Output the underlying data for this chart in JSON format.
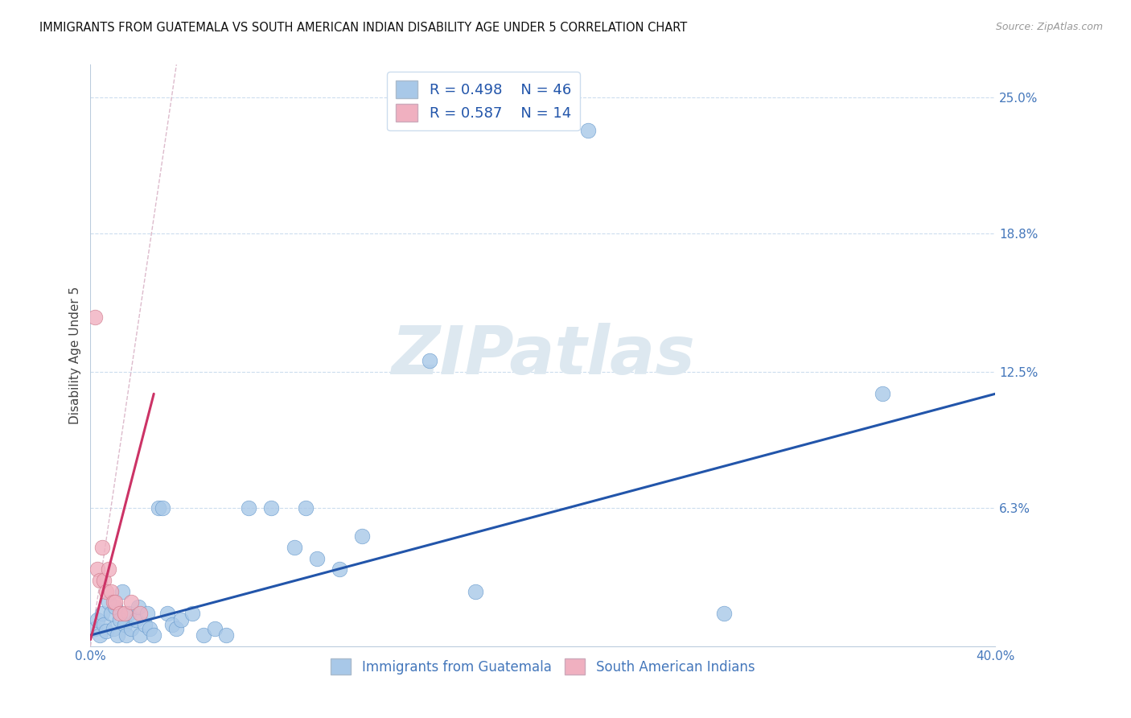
{
  "title": "IMMIGRANTS FROM GUATEMALA VS SOUTH AMERICAN INDIAN DISABILITY AGE UNDER 5 CORRELATION CHART",
  "source": "Source: ZipAtlas.com",
  "ylabel": "Disability Age Under 5",
  "xlim": [
    0.0,
    40.0
  ],
  "ylim": [
    0.0,
    26.5
  ],
  "xtick_values": [
    0.0,
    40.0
  ],
  "xtick_labels": [
    "0.0%",
    "40.0%"
  ],
  "ytick_values": [
    0.0,
    6.3,
    12.5,
    18.8,
    25.0
  ],
  "ytick_labels": [
    "",
    "6.3%",
    "12.5%",
    "18.8%",
    "25.0%"
  ],
  "blue_color": "#a8c8e8",
  "blue_edge_color": "#6699cc",
  "pink_color": "#f0b0c0",
  "pink_edge_color": "#cc7788",
  "trend_blue": "#2255aa",
  "trend_pink": "#cc3366",
  "grid_color": "#ccddee",
  "legend_text_color": "#2255aa",
  "legend_r1": "R = 0.498",
  "legend_n1": "N = 46",
  "legend_r2": "R = 0.587",
  "legend_n2": "N = 14",
  "watermark": "ZIPatlas",
  "watermark_color": "#dde8f0",
  "legend_label1": "Immigrants from Guatemala",
  "legend_label2": "South American Indians",
  "blue_scatter_x": [
    0.2,
    0.3,
    0.4,
    0.5,
    0.6,
    0.7,
    0.8,
    0.9,
    1.0,
    1.1,
    1.2,
    1.3,
    1.4,
    1.5,
    1.6,
    1.7,
    1.8,
    2.0,
    2.1,
    2.2,
    2.4,
    2.5,
    2.6,
    2.8,
    3.0,
    3.2,
    3.4,
    3.6,
    3.8,
    4.0,
    4.5,
    5.0,
    5.5,
    6.0,
    7.0,
    8.0,
    9.0,
    9.5,
    10.0,
    11.0,
    12.0,
    15.0,
    17.0,
    22.0,
    28.0,
    35.0
  ],
  "blue_scatter_y": [
    0.8,
    1.2,
    0.5,
    1.5,
    1.0,
    0.7,
    2.0,
    1.5,
    0.8,
    1.8,
    0.5,
    1.2,
    2.5,
    1.0,
    0.5,
    1.5,
    0.8,
    1.2,
    1.8,
    0.5,
    1.0,
    1.5,
    0.8,
    0.5,
    6.3,
    6.3,
    1.5,
    1.0,
    0.8,
    1.2,
    1.5,
    0.5,
    0.8,
    0.5,
    6.3,
    6.3,
    4.5,
    6.3,
    4.0,
    3.5,
    5.0,
    13.0,
    2.5,
    23.5,
    1.5,
    11.5
  ],
  "pink_scatter_x": [
    0.2,
    0.3,
    0.4,
    0.5,
    0.6,
    0.7,
    0.8,
    0.9,
    1.0,
    1.1,
    1.3,
    1.5,
    1.8,
    2.2
  ],
  "pink_scatter_y": [
    15.0,
    3.5,
    3.0,
    4.5,
    3.0,
    2.5,
    3.5,
    2.5,
    2.0,
    2.0,
    1.5,
    1.5,
    2.0,
    1.5
  ],
  "blue_trend_x": [
    0.0,
    40.0
  ],
  "blue_trend_y": [
    0.5,
    11.5
  ],
  "pink_trend_x": [
    0.0,
    2.8
  ],
  "pink_trend_y": [
    0.3,
    11.5
  ],
  "dash_line_x": [
    0.0,
    3.8
  ],
  "dash_line_y": [
    0.0,
    26.5
  ]
}
